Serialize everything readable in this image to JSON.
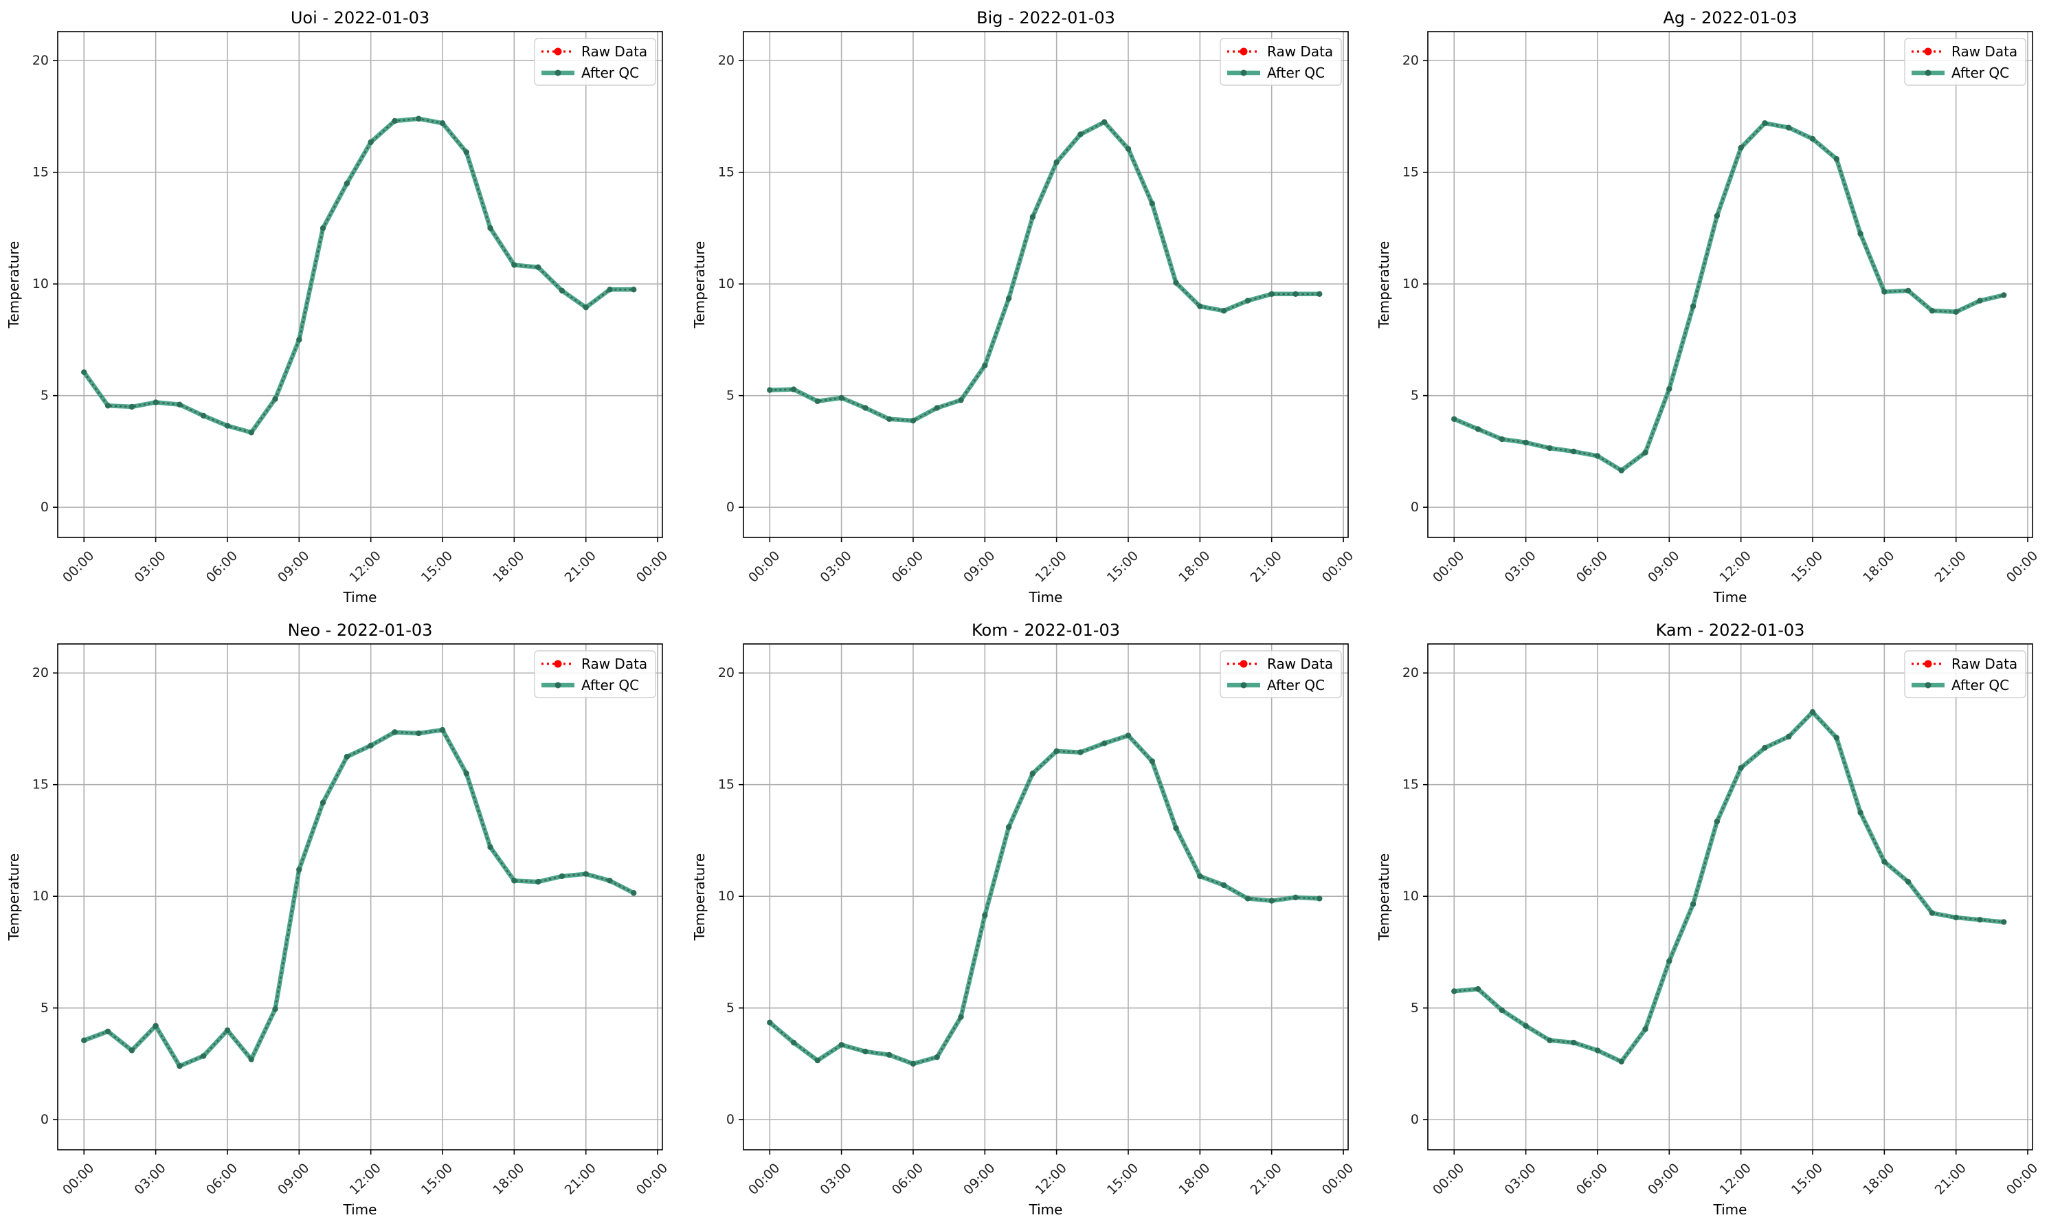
{
  "chart_data": [
    {
      "type": "line",
      "title": "Uoi - 2022-01-03",
      "xlabel": "Time",
      "ylabel": "Temperature",
      "x_ticks": [
        "00:00",
        "03:00",
        "06:00",
        "09:00",
        "12:00",
        "15:00",
        "18:00",
        "21:00",
        "00:00"
      ],
      "y_ticks": [
        0,
        5,
        10,
        15,
        20
      ],
      "xlim_hours": [
        -1.1,
        24.2
      ],
      "ylim": [
        -1.35,
        21.3
      ],
      "grid": true,
      "legend_position": "top-right",
      "hours": [
        0,
        1,
        2,
        3,
        4,
        5,
        6,
        7,
        8,
        9,
        10,
        11,
        12,
        13,
        14,
        15,
        16,
        17,
        18,
        19,
        20,
        21,
        22,
        23
      ],
      "series": [
        {
          "name": "Raw Data",
          "values": [
            6.05,
            4.55,
            4.5,
            4.7,
            4.6,
            4.1,
            3.65,
            3.35,
            4.85,
            7.5,
            12.5,
            14.5,
            16.35,
            17.3,
            17.4,
            17.2,
            15.9,
            12.5,
            10.85,
            10.75,
            9.7,
            8.95,
            9.75,
            9.75
          ]
        },
        {
          "name": "After QC",
          "values": [
            6.05,
            4.55,
            4.5,
            4.7,
            4.6,
            4.1,
            3.65,
            3.35,
            4.85,
            7.5,
            12.5,
            14.5,
            16.35,
            17.3,
            17.4,
            17.2,
            15.9,
            12.5,
            10.85,
            10.75,
            9.7,
            8.95,
            9.75,
            9.75
          ]
        }
      ]
    },
    {
      "type": "line",
      "title": "Big - 2022-01-03",
      "xlabel": "Time",
      "ylabel": "Temperature",
      "x_ticks": [
        "00:00",
        "03:00",
        "06:00",
        "09:00",
        "12:00",
        "15:00",
        "18:00",
        "21:00",
        "00:00"
      ],
      "y_ticks": [
        0,
        5,
        10,
        15,
        20
      ],
      "xlim_hours": [
        -1.1,
        24.2
      ],
      "ylim": [
        -1.35,
        21.3
      ],
      "grid": true,
      "legend_position": "top-right",
      "hours": [
        0,
        1,
        2,
        3,
        4,
        5,
        6,
        7,
        8,
        9,
        10,
        11,
        12,
        13,
        14,
        15,
        16,
        17,
        18,
        19,
        20,
        21,
        22,
        23
      ],
      "series": [
        {
          "name": "Raw Data",
          "values": [
            5.25,
            5.28,
            4.75,
            4.9,
            4.45,
            3.95,
            3.88,
            4.45,
            4.8,
            6.35,
            9.35,
            13.0,
            15.45,
            16.7,
            17.25,
            16.05,
            13.6,
            10.05,
            9.0,
            8.8,
            9.25,
            9.55,
            9.55,
            9.55
          ]
        },
        {
          "name": "After QC",
          "values": [
            5.25,
            5.28,
            4.75,
            4.9,
            4.45,
            3.95,
            3.88,
            4.45,
            4.8,
            6.35,
            9.35,
            13.0,
            15.45,
            16.7,
            17.25,
            16.05,
            13.6,
            10.05,
            9.0,
            8.8,
            9.25,
            9.55,
            9.55,
            9.55
          ]
        }
      ]
    },
    {
      "type": "line",
      "title": "Ag - 2022-01-03",
      "xlabel": "Time",
      "ylabel": "Temperature",
      "x_ticks": [
        "00:00",
        "03:00",
        "06:00",
        "09:00",
        "12:00",
        "15:00",
        "18:00",
        "21:00",
        "00:00"
      ],
      "y_ticks": [
        0,
        5,
        10,
        15,
        20
      ],
      "xlim_hours": [
        -1.1,
        24.2
      ],
      "ylim": [
        -1.35,
        21.3
      ],
      "grid": true,
      "legend_position": "top-right",
      "hours": [
        0,
        1,
        2,
        3,
        4,
        5,
        6,
        7,
        8,
        9,
        10,
        11,
        12,
        13,
        14,
        15,
        16,
        17,
        18,
        19,
        20,
        21,
        22,
        23
      ],
      "series": [
        {
          "name": "Raw Data",
          "values": [
            3.95,
            3.5,
            3.05,
            2.9,
            2.65,
            2.5,
            2.3,
            1.65,
            2.45,
            5.3,
            9.0,
            13.05,
            16.1,
            17.2,
            17.0,
            16.5,
            15.6,
            12.25,
            9.65,
            9.7,
            8.8,
            8.75,
            9.25,
            9.5
          ]
        },
        {
          "name": "After QC",
          "values": [
            3.95,
            3.5,
            3.05,
            2.9,
            2.65,
            2.5,
            2.3,
            1.65,
            2.45,
            5.3,
            9.0,
            13.05,
            16.1,
            17.2,
            17.0,
            16.5,
            15.6,
            12.25,
            9.65,
            9.7,
            8.8,
            8.75,
            9.25,
            9.5
          ]
        }
      ]
    },
    {
      "type": "line",
      "title": "Neo - 2022-01-03",
      "xlabel": "Time",
      "ylabel": "Temperature",
      "x_ticks": [
        "00:00",
        "03:00",
        "06:00",
        "09:00",
        "12:00",
        "15:00",
        "18:00",
        "21:00",
        "00:00"
      ],
      "y_ticks": [
        0,
        5,
        10,
        15,
        20
      ],
      "xlim_hours": [
        -1.1,
        24.2
      ],
      "ylim": [
        -1.35,
        21.3
      ],
      "grid": true,
      "legend_position": "top-right",
      "hours": [
        0,
        1,
        2,
        3,
        4,
        5,
        6,
        7,
        8,
        9,
        10,
        11,
        12,
        13,
        14,
        15,
        16,
        17,
        18,
        19,
        20,
        21,
        22,
        23
      ],
      "series": [
        {
          "name": "Raw Data",
          "values": [
            3.55,
            3.95,
            3.1,
            4.2,
            2.4,
            2.85,
            4.0,
            2.7,
            4.95,
            11.2,
            14.2,
            16.25,
            16.75,
            17.35,
            17.3,
            17.45,
            15.5,
            12.2,
            10.7,
            10.65,
            10.9,
            11.0,
            10.7,
            10.15
          ]
        },
        {
          "name": "After QC",
          "values": [
            3.55,
            3.95,
            3.1,
            4.2,
            2.4,
            2.85,
            4.0,
            2.7,
            4.95,
            11.2,
            14.2,
            16.25,
            16.75,
            17.35,
            17.3,
            17.45,
            15.5,
            12.2,
            10.7,
            10.65,
            10.9,
            11.0,
            10.7,
            10.15
          ]
        }
      ]
    },
    {
      "type": "line",
      "title": "Kom - 2022-01-03",
      "xlabel": "Time",
      "ylabel": "Temperature",
      "x_ticks": [
        "00:00",
        "03:00",
        "06:00",
        "09:00",
        "12:00",
        "15:00",
        "18:00",
        "21:00",
        "00:00"
      ],
      "y_ticks": [
        0,
        5,
        10,
        15,
        20
      ],
      "xlim_hours": [
        -1.1,
        24.2
      ],
      "ylim": [
        -1.35,
        21.3
      ],
      "grid": true,
      "legend_position": "top-right",
      "hours": [
        0,
        1,
        2,
        3,
        4,
        5,
        6,
        7,
        8,
        9,
        10,
        11,
        12,
        13,
        14,
        15,
        16,
        17,
        18,
        19,
        20,
        21,
        22,
        23
      ],
      "series": [
        {
          "name": "Raw Data",
          "values": [
            4.35,
            3.45,
            2.65,
            3.35,
            3.05,
            2.9,
            2.5,
            2.8,
            4.6,
            9.15,
            13.1,
            15.5,
            16.5,
            16.45,
            16.85,
            17.2,
            16.05,
            13.05,
            10.9,
            10.5,
            9.9,
            9.8,
            9.95,
            9.9
          ]
        },
        {
          "name": "After QC",
          "values": [
            4.35,
            3.45,
            2.65,
            3.35,
            3.05,
            2.9,
            2.5,
            2.8,
            4.6,
            9.15,
            13.1,
            15.5,
            16.5,
            16.45,
            16.85,
            17.2,
            16.05,
            13.05,
            10.9,
            10.5,
            9.9,
            9.8,
            9.95,
            9.9
          ]
        }
      ]
    },
    {
      "type": "line",
      "title": "Kam - 2022-01-03",
      "xlabel": "Time",
      "ylabel": "Temperature",
      "x_ticks": [
        "00:00",
        "03:00",
        "06:00",
        "09:00",
        "12:00",
        "15:00",
        "18:00",
        "21:00",
        "00:00"
      ],
      "y_ticks": [
        0,
        5,
        10,
        15,
        20
      ],
      "xlim_hours": [
        -1.1,
        24.2
      ],
      "ylim": [
        -1.35,
        21.3
      ],
      "grid": true,
      "legend_position": "top-right",
      "hours": [
        0,
        1,
        2,
        3,
        4,
        5,
        6,
        7,
        8,
        9,
        10,
        11,
        12,
        13,
        14,
        15,
        16,
        17,
        18,
        19,
        20,
        21,
        22,
        23
      ],
      "series": [
        {
          "name": "Raw Data",
          "values": [
            5.75,
            5.85,
            4.9,
            4.2,
            3.55,
            3.45,
            3.1,
            2.6,
            4.05,
            7.1,
            9.65,
            13.35,
            15.75,
            16.65,
            17.15,
            18.25,
            17.1,
            13.75,
            11.55,
            10.65,
            9.25,
            9.05,
            8.95,
            8.85
          ]
        },
        {
          "name": "After QC",
          "values": [
            5.75,
            5.85,
            4.9,
            4.2,
            3.55,
            3.45,
            3.1,
            2.6,
            4.05,
            7.1,
            9.65,
            13.35,
            15.75,
            16.65,
            17.15,
            18.25,
            17.1,
            13.75,
            11.55,
            10.65,
            9.25,
            9.05,
            8.95,
            8.85
          ]
        }
      ]
    }
  ],
  "colors": {
    "raw": "#ff0000",
    "qc": "#3a9c7d",
    "qc_marker": "#2b6f58",
    "grid": "#b0b0b0",
    "axes": "#000000"
  }
}
